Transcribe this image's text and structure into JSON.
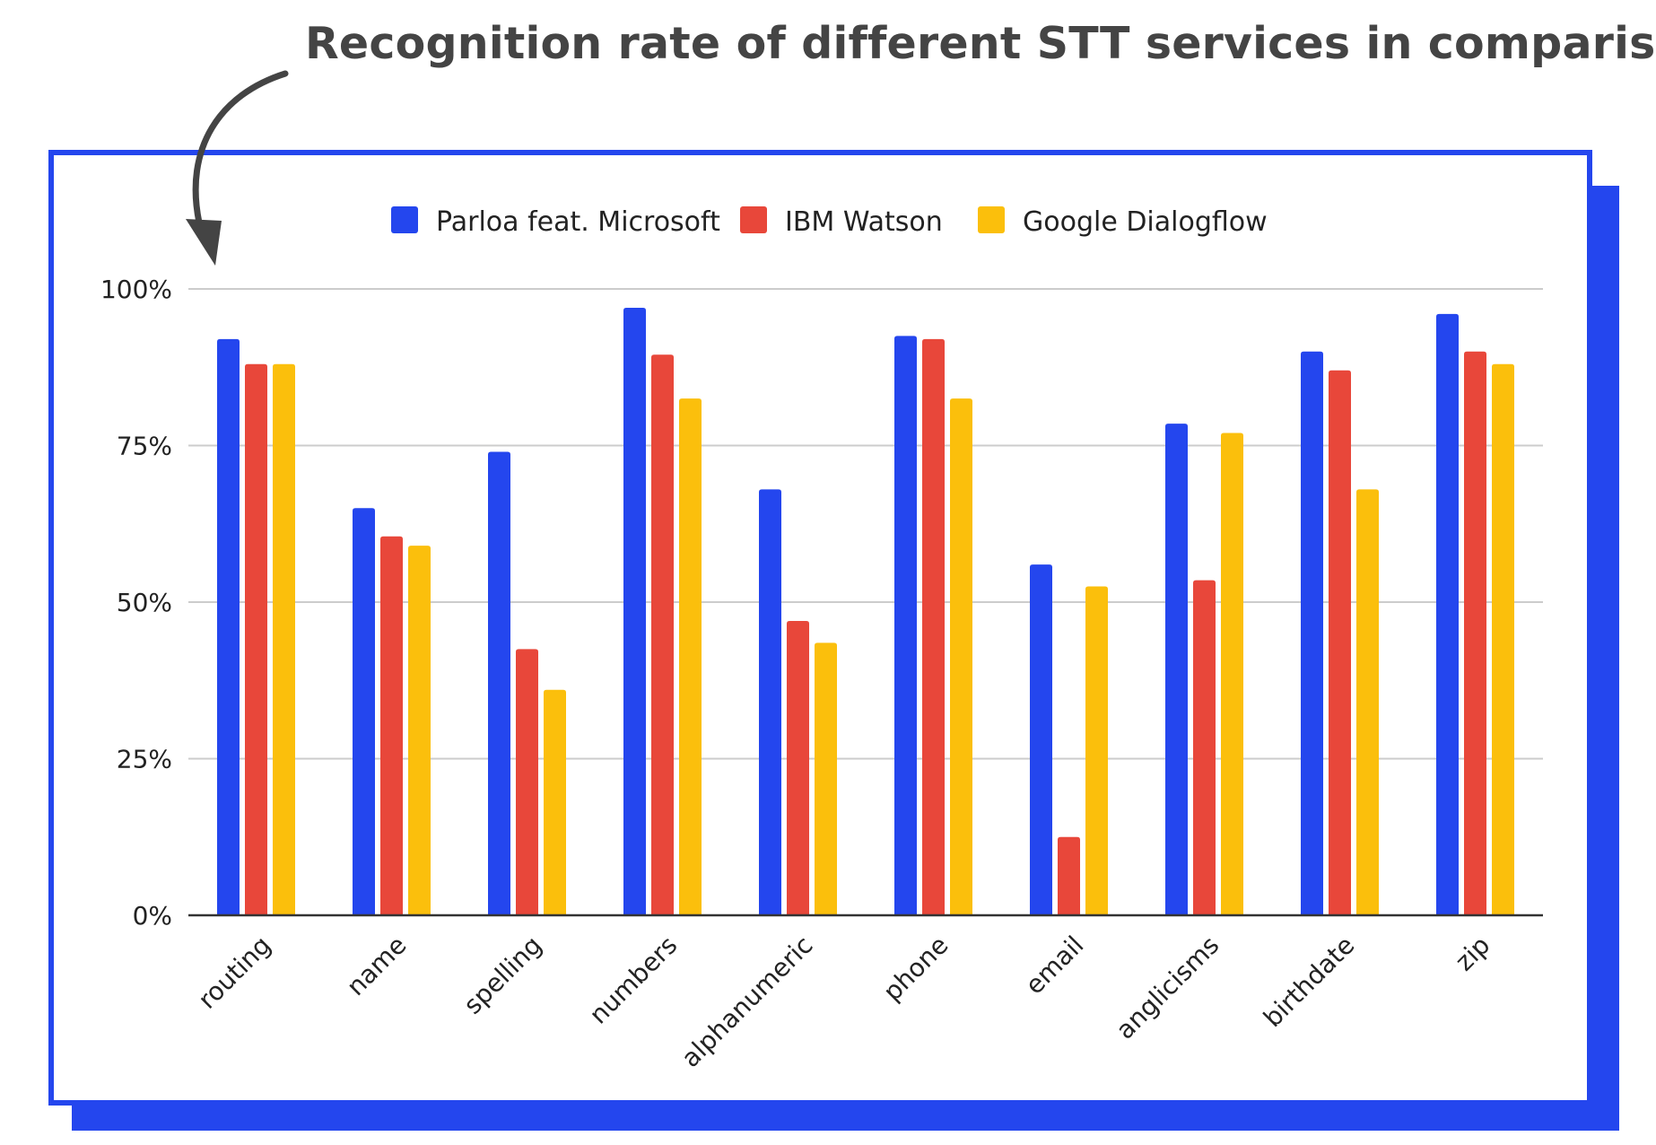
{
  "title": "Recognition rate of different STT services in comparison",
  "colors": {
    "accent": "#2446ee",
    "grid": "#cccccc",
    "axis": "#333333",
    "title": "#444444"
  },
  "chart_data": {
    "type": "bar",
    "categories": [
      "routing",
      "name",
      "spelling",
      "numbers",
      "alphanumeric",
      "phone",
      "email",
      "anglicisms",
      "birthdate",
      "zip"
    ],
    "series": [
      {
        "name": "Parloa feat. Microsoft",
        "color": "#2446ee",
        "values": [
          92,
          65,
          74,
          97,
          68,
          92.5,
          56,
          78.5,
          90,
          96
        ]
      },
      {
        "name": "IBM Watson",
        "color": "#e8473a",
        "values": [
          88,
          60.5,
          42.5,
          89.5,
          47,
          92,
          12.5,
          53.5,
          87,
          90
        ]
      },
      {
        "name": "Google Dialogflow",
        "color": "#fbbf0c",
        "values": [
          88,
          59,
          36,
          82.5,
          43.5,
          82.5,
          52.5,
          77,
          68,
          88
        ]
      }
    ],
    "yticks": [
      "0%",
      "25%",
      "50%",
      "75%",
      "100%"
    ],
    "ylim": [
      0,
      100
    ],
    "grid": true,
    "legend_position": "top-center"
  }
}
